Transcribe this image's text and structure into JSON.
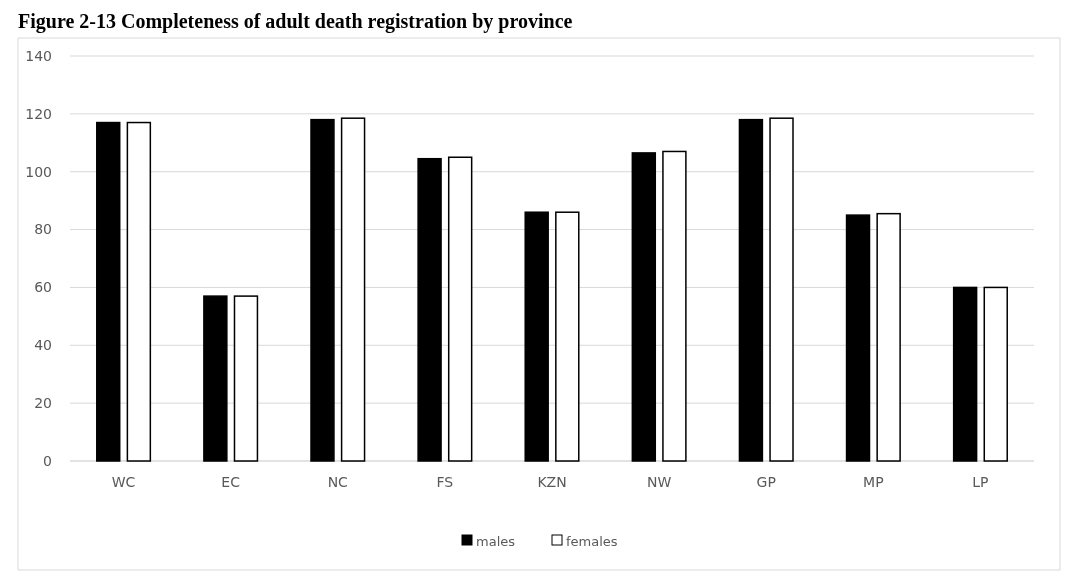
{
  "chart_data": {
    "type": "bar",
    "title": "Figure 2-13 Completeness of adult death registration by province",
    "categories": [
      "WC",
      "EC",
      "NC",
      "FS",
      "KZN",
      "NW",
      "GP",
      "MP",
      "LP"
    ],
    "series": [
      {
        "name": "males",
        "color": "#000000",
        "values": [
          117,
          57,
          118,
          104.5,
          86,
          106.5,
          118,
          85,
          60
        ]
      },
      {
        "name": "females",
        "color": "#ffffff",
        "values": [
          117,
          57,
          118.5,
          105,
          86,
          107,
          118.5,
          85.5,
          60
        ]
      }
    ],
    "ylim": [
      0,
      140
    ],
    "yticks": [
      0,
      20,
      40,
      60,
      80,
      100,
      120,
      140
    ],
    "grid": "y",
    "legend": "bottom"
  }
}
